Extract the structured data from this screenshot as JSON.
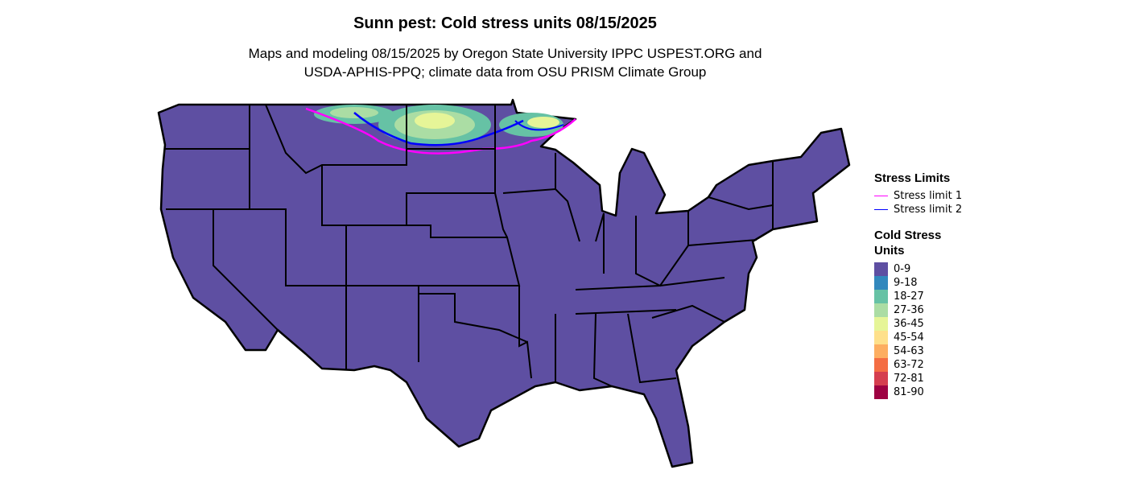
{
  "title": "Sunn pest: Cold stress units 08/15/2025",
  "subtitle_line1": "Maps and modeling 08/15/2025 by Oregon State University IPPC USPEST.ORG and",
  "subtitle_line2": "USDA-APHIS-PPQ; climate data from OSU PRISM Climate Group",
  "map_fill_color": "#5E4FA2",
  "stress_legend": {
    "title": "Stress Limits",
    "items": [
      {
        "label": "Stress limit 1",
        "color": "#FF00FF"
      },
      {
        "label": "Stress limit 2",
        "color": "#0000FF"
      }
    ]
  },
  "units_legend": {
    "title_line1": "Cold Stress",
    "title_line2": "Units",
    "items": [
      {
        "label": "0-9",
        "color": "#5E4FA2"
      },
      {
        "label": "9-18",
        "color": "#3288BD"
      },
      {
        "label": "18-27",
        "color": "#66C2A5"
      },
      {
        "label": "27-36",
        "color": "#ABDDA4"
      },
      {
        "label": "36-45",
        "color": "#E6F598"
      },
      {
        "label": "45-54",
        "color": "#FEE08B"
      },
      {
        "label": "54-63",
        "color": "#FDAE61"
      },
      {
        "label": "63-72",
        "color": "#F46D43"
      },
      {
        "label": "72-81",
        "color": "#D53E4F"
      },
      {
        "label": "81-90",
        "color": "#9E0142"
      }
    ]
  }
}
